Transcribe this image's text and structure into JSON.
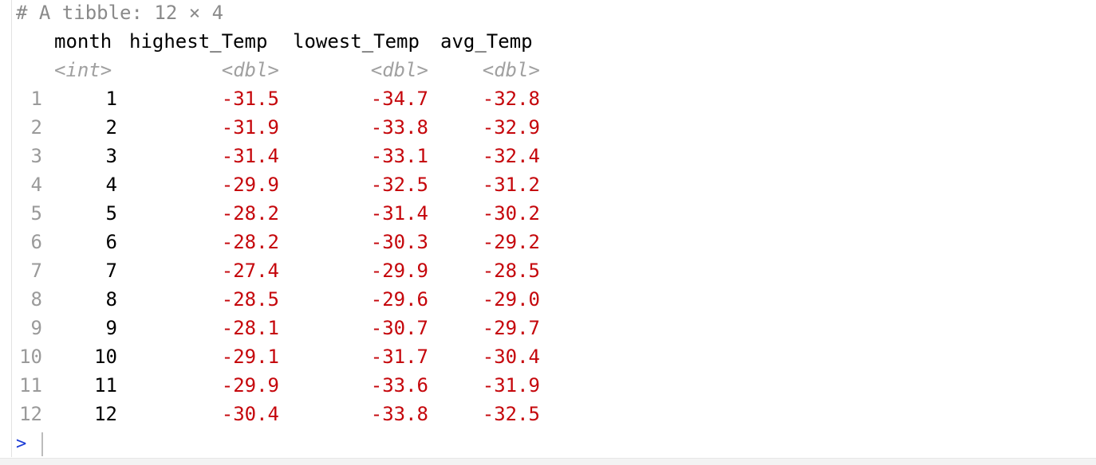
{
  "console": {
    "header_comment": "# A tibble: 12 × 4",
    "columns": [
      {
        "name": "month",
        "type": "<int>"
      },
      {
        "name": "highest_Temp",
        "type": "<dbl>"
      },
      {
        "name": "lowest_Temp",
        "type": "<dbl>"
      },
      {
        "name": "avg_Temp",
        "type": "<dbl>"
      }
    ],
    "rows": [
      {
        "index": "1",
        "month": "1",
        "highest": "-31.5",
        "lowest": "-34.7",
        "avg": "-32.8"
      },
      {
        "index": "2",
        "month": "2",
        "highest": "-31.9",
        "lowest": "-33.8",
        "avg": "-32.9"
      },
      {
        "index": "3",
        "month": "3",
        "highest": "-31.4",
        "lowest": "-33.1",
        "avg": "-32.4"
      },
      {
        "index": "4",
        "month": "4",
        "highest": "-29.9",
        "lowest": "-32.5",
        "avg": "-31.2"
      },
      {
        "index": "5",
        "month": "5",
        "highest": "-28.2",
        "lowest": "-31.4",
        "avg": "-30.2"
      },
      {
        "index": "6",
        "month": "6",
        "highest": "-28.2",
        "lowest": "-30.3",
        "avg": "-29.2"
      },
      {
        "index": "7",
        "month": "7",
        "highest": "-27.4",
        "lowest": "-29.9",
        "avg": "-28.5"
      },
      {
        "index": "8",
        "month": "8",
        "highest": "-28.5",
        "lowest": "-29.6",
        "avg": "-29.0"
      },
      {
        "index": "9",
        "month": "9",
        "highest": "-28.1",
        "lowest": "-30.7",
        "avg": "-29.7"
      },
      {
        "index": "10",
        "month": "10",
        "highest": "-29.1",
        "lowest": "-31.7",
        "avg": "-30.4"
      },
      {
        "index": "11",
        "month": "11",
        "highest": "-29.9",
        "lowest": "-33.6",
        "avg": "-31.9"
      },
      {
        "index": "12",
        "month": "12",
        "highest": "-30.4",
        "lowest": "-33.8",
        "avg": "-32.5"
      }
    ],
    "prompt": ">",
    "colors": {
      "negative": "#c5060b",
      "comment": "#8a8a8a",
      "prompt": "#1a3bd6"
    }
  }
}
